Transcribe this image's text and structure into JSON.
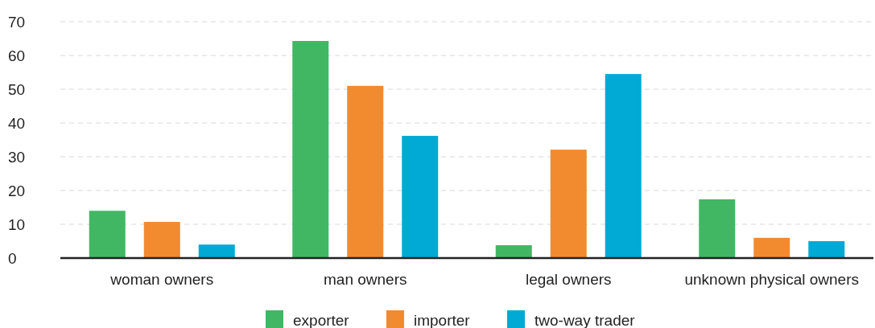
{
  "chart_data": {
    "type": "bar",
    "categories": [
      "woman owners",
      "man owners",
      "legal owners",
      "unknown physical owners"
    ],
    "series": [
      {
        "name": "exporter",
        "color": "#41b764",
        "values": [
          14.0,
          64.3,
          3.8,
          17.4
        ]
      },
      {
        "name": "importer",
        "color": "#f28a30",
        "values": [
          10.7,
          51.0,
          32.1,
          6.0
        ]
      },
      {
        "name": "two-way trader",
        "color": "#00aad4",
        "values": [
          4.0,
          36.2,
          54.5,
          5.0
        ]
      }
    ],
    "ylim": [
      0,
      70
    ],
    "yticks": [
      0,
      10,
      20,
      30,
      40,
      50,
      60,
      70
    ],
    "grid": "y",
    "legend": "bottom"
  }
}
